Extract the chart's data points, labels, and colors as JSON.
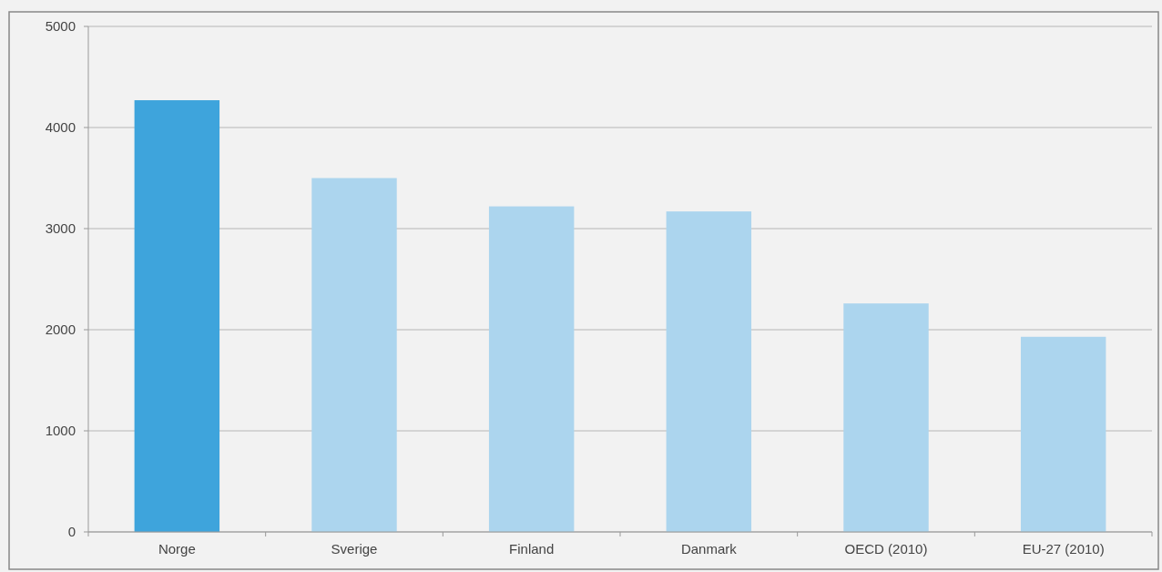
{
  "chart_data": {
    "type": "bar",
    "categories": [
      "Norge",
      "Sverige",
      "Finland",
      "Danmark",
      "OECD (2010)",
      "EU-27 (2010)"
    ],
    "values": [
      4270,
      3500,
      3220,
      3170,
      2260,
      1930
    ],
    "colors": [
      "#3ea4dc",
      "#acd5ee",
      "#acd5ee",
      "#acd5ee",
      "#acd5ee",
      "#acd5ee"
    ],
    "ylim": [
      0,
      5000
    ],
    "yticks": [
      0,
      1000,
      2000,
      3000,
      4000,
      5000
    ],
    "grid": "y"
  }
}
